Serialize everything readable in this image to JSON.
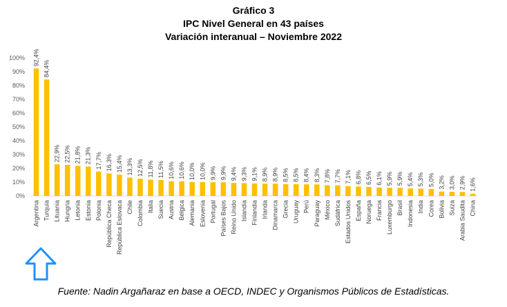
{
  "chart_data": {
    "type": "bar",
    "title": "Gráfico 3",
    "subtitle": "IPC Nivel General en 43 países",
    "subtitle2": "Variación interanual – Noviembre 2022",
    "xlabel": "",
    "ylabel": "",
    "ylim": [
      0,
      100
    ],
    "yticks": [
      "0%",
      "10%",
      "20%",
      "30%",
      "40%",
      "50%",
      "60%",
      "70%",
      "80%",
      "90%",
      "100%"
    ],
    "bar_color": "#FFC000",
    "categories": [
      "Argentina",
      "Turquia",
      "Lituania",
      "Hungria",
      "Letonia",
      "Estonia",
      "Polonia",
      "República Checa",
      "República Eslovaca",
      "Chile",
      "Colombia",
      "Italia",
      "Suecia",
      "Austria",
      "Bélgica",
      "Alemania",
      "Eslovenia",
      "Portugal",
      "Países Bajos",
      "Reino Unido",
      "Islandia",
      "Finlandia",
      "Irlanda",
      "Dinamarca",
      "Grecia",
      "Uruguay",
      "Perú",
      "Paraguay",
      "México",
      "Sudáfrica",
      "Estados Unidos",
      "España",
      "Noruega",
      "Francia",
      "Luxemburgo",
      "Brasil",
      "Indonesia",
      "India",
      "Corea",
      "Bolivia",
      "Suiza",
      "Arabia Saudita",
      "China"
    ],
    "values": [
      92.4,
      84.4,
      22.9,
      22.5,
      21.8,
      21.3,
      17.7,
      16.3,
      15.4,
      13.3,
      12.5,
      11.8,
      11.5,
      10.6,
      10.6,
      10.0,
      10.0,
      9.9,
      9.9,
      9.4,
      9.3,
      9.1,
      8.9,
      8.9,
      8.5,
      8.5,
      8.4,
      8.3,
      7.8,
      7.7,
      7.1,
      6.8,
      6.5,
      6.1,
      5.9,
      5.9,
      5.4,
      5.3,
      5.0,
      3.2,
      3.0,
      2.9,
      1.6
    ],
    "labels": [
      "92,4%",
      "84,4%",
      "22,9%",
      "22,5%",
      "21,8%",
      "21,3%",
      "17,7%",
      "16,3%",
      "15,4%",
      "13,3%",
      "12,5%",
      "11,8%",
      "11,5%",
      "10,6%",
      "10,6%",
      "10,0%",
      "10,0%",
      "9,9%",
      "9,9%",
      "9,4%",
      "9,3%",
      "9,1%",
      "8,9%",
      "8,9%",
      "8,5%",
      "8,5%",
      "8,4%",
      "8,3%",
      "7,8%",
      "7,7%",
      "7,1%",
      "6,8%",
      "6,5%",
      "6,1%",
      "5,9%",
      "5,9%",
      "5,4%",
      "5,3%",
      "5,0%",
      "3,2%",
      "3,0%",
      "2,9%",
      "1,6%"
    ]
  },
  "source": "Fuente: Nadin Argañaraz en base a OECD, INDEC y Organismos Públicos de Estadísticas.",
  "arrow_color": "#1E90FF"
}
